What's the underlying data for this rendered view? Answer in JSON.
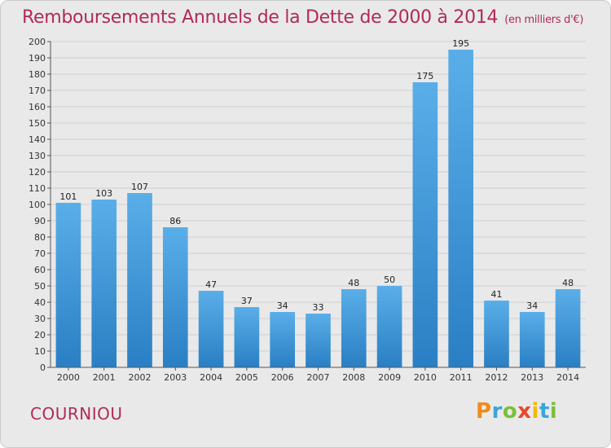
{
  "header": {
    "title": "Remboursements Annuels de la Dette de 2000 à 2014",
    "unit": "(en milliers d'€)"
  },
  "footer": {
    "commune": "COURNIOU",
    "logo_text": "Proxiti"
  },
  "colors": {
    "bar_light": "#5aaee8",
    "bar_dark": "#2a7fc4",
    "title": "#b02a5b",
    "background": "#e9e9e9"
  },
  "chart_data": {
    "type": "bar",
    "title": "Remboursements Annuels de la Dette de 2000 à 2014",
    "xlabel": "",
    "ylabel": "",
    "ylim": [
      0,
      200
    ],
    "ytick_step": 10,
    "grid": true,
    "categories": [
      "2000",
      "2001",
      "2002",
      "2003",
      "2004",
      "2005",
      "2006",
      "2007",
      "2008",
      "2009",
      "2010",
      "2011",
      "2012",
      "2013",
      "2014"
    ],
    "values": [
      101,
      103,
      107,
      86,
      47,
      37,
      34,
      33,
      48,
      50,
      175,
      195,
      41,
      34,
      48
    ]
  }
}
